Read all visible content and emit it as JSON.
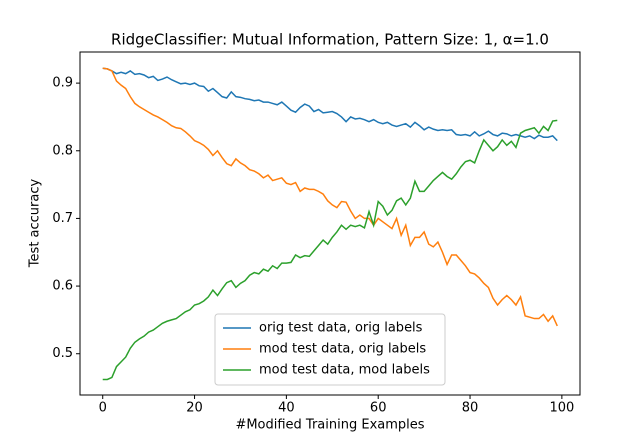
{
  "chart_data": {
    "type": "line",
    "title": "RidgeClassifier: Mutual Information, Pattern Size: 1, α=1.0",
    "x_label": "#Modified Training Examples",
    "y_label": "Test accuracy",
    "x": [
      0,
      1,
      2,
      3,
      4,
      5,
      6,
      7,
      8,
      9,
      10,
      11,
      12,
      13,
      14,
      15,
      16,
      17,
      18,
      19,
      20,
      21,
      22,
      23,
      24,
      25,
      26,
      27,
      28,
      29,
      30,
      31,
      32,
      33,
      34,
      35,
      36,
      37,
      38,
      39,
      40,
      41,
      42,
      43,
      44,
      45,
      46,
      47,
      48,
      49,
      50,
      51,
      52,
      53,
      54,
      55,
      56,
      57,
      58,
      59,
      60,
      61,
      62,
      63,
      64,
      65,
      66,
      67,
      68,
      69,
      70,
      71,
      72,
      73,
      74,
      75,
      76,
      77,
      78,
      79,
      80,
      81,
      82,
      83,
      84,
      85,
      86,
      87,
      88,
      89,
      90,
      91,
      92,
      93,
      94,
      95,
      96,
      97,
      98,
      99
    ],
    "series": [
      {
        "name": "orig test data, orig labels",
        "color": "#1f77b4",
        "values": [
          0.922,
          0.921,
          0.918,
          0.914,
          0.916,
          0.914,
          0.918,
          0.913,
          0.914,
          0.912,
          0.908,
          0.91,
          0.904,
          0.906,
          0.909,
          0.905,
          0.902,
          0.899,
          0.9,
          0.898,
          0.9,
          0.896,
          0.895,
          0.888,
          0.892,
          0.886,
          0.88,
          0.878,
          0.887,
          0.88,
          0.879,
          0.877,
          0.876,
          0.874,
          0.875,
          0.872,
          0.872,
          0.87,
          0.868,
          0.872,
          0.866,
          0.86,
          0.857,
          0.864,
          0.869,
          0.866,
          0.858,
          0.861,
          0.856,
          0.857,
          0.858,
          0.855,
          0.85,
          0.843,
          0.85,
          0.847,
          0.848,
          0.846,
          0.843,
          0.846,
          0.842,
          0.84,
          0.842,
          0.838,
          0.836,
          0.838,
          0.84,
          0.835,
          0.842,
          0.837,
          0.831,
          0.835,
          0.832,
          0.83,
          0.831,
          0.83,
          0.831,
          0.824,
          0.823,
          0.824,
          0.822,
          0.828,
          0.822,
          0.825,
          0.829,
          0.824,
          0.822,
          0.826,
          0.825,
          0.822,
          0.824,
          0.822,
          0.82,
          0.822,
          0.818,
          0.823,
          0.82,
          0.82,
          0.822,
          0.815
        ]
      },
      {
        "name": "mod test data, orig labels",
        "color": "#ff7f0e",
        "values": [
          0.922,
          0.921,
          0.918,
          0.903,
          0.897,
          0.892,
          0.88,
          0.87,
          0.865,
          0.861,
          0.857,
          0.853,
          0.85,
          0.846,
          0.842,
          0.837,
          0.834,
          0.833,
          0.828,
          0.822,
          0.815,
          0.812,
          0.808,
          0.802,
          0.793,
          0.8,
          0.79,
          0.781,
          0.778,
          0.788,
          0.782,
          0.778,
          0.772,
          0.77,
          0.766,
          0.76,
          0.764,
          0.756,
          0.758,
          0.76,
          0.752,
          0.75,
          0.753,
          0.74,
          0.745,
          0.743,
          0.743,
          0.74,
          0.736,
          0.726,
          0.72,
          0.716,
          0.725,
          0.724,
          0.711,
          0.7,
          0.705,
          0.7,
          0.7,
          0.69,
          0.7,
          0.695,
          0.69,
          0.685,
          0.7,
          0.675,
          0.69,
          0.66,
          0.672,
          0.672,
          0.68,
          0.662,
          0.658,
          0.665,
          0.65,
          0.632,
          0.646,
          0.646,
          0.638,
          0.63,
          0.62,
          0.618,
          0.612,
          0.604,
          0.598,
          0.582,
          0.572,
          0.58,
          0.586,
          0.58,
          0.572,
          0.584,
          0.556,
          0.554,
          0.552,
          0.552,
          0.558,
          0.548,
          0.556,
          0.541
        ]
      },
      {
        "name": "mod test data, mod labels",
        "color": "#2ca02c",
        "values": [
          0.462,
          0.462,
          0.465,
          0.481,
          0.488,
          0.495,
          0.508,
          0.517,
          0.522,
          0.526,
          0.532,
          0.535,
          0.54,
          0.545,
          0.548,
          0.55,
          0.552,
          0.557,
          0.562,
          0.565,
          0.572,
          0.574,
          0.578,
          0.584,
          0.594,
          0.586,
          0.596,
          0.605,
          0.608,
          0.598,
          0.604,
          0.608,
          0.616,
          0.62,
          0.618,
          0.625,
          0.622,
          0.63,
          0.626,
          0.634,
          0.634,
          0.635,
          0.646,
          0.642,
          0.645,
          0.644,
          0.652,
          0.66,
          0.668,
          0.662,
          0.672,
          0.68,
          0.69,
          0.684,
          0.69,
          0.688,
          0.69,
          0.686,
          0.71,
          0.69,
          0.725,
          0.718,
          0.705,
          0.712,
          0.726,
          0.73,
          0.72,
          0.73,
          0.755,
          0.74,
          0.74,
          0.748,
          0.756,
          0.762,
          0.768,
          0.762,
          0.758,
          0.766,
          0.776,
          0.784,
          0.786,
          0.782,
          0.8,
          0.816,
          0.808,
          0.8,
          0.806,
          0.816,
          0.808,
          0.814,
          0.805,
          0.826,
          0.83,
          0.832,
          0.834,
          0.826,
          0.836,
          0.83,
          0.844,
          0.845
        ]
      }
    ],
    "xlim": [
      -4.95,
      103.95
    ],
    "ylim": [
      0.439,
      0.946
    ],
    "xticks": [
      0,
      20,
      40,
      60,
      80,
      100
    ],
    "yticks": [
      0.5,
      0.6,
      0.7,
      0.8,
      0.9
    ],
    "grid": false,
    "legend": "lower center"
  }
}
